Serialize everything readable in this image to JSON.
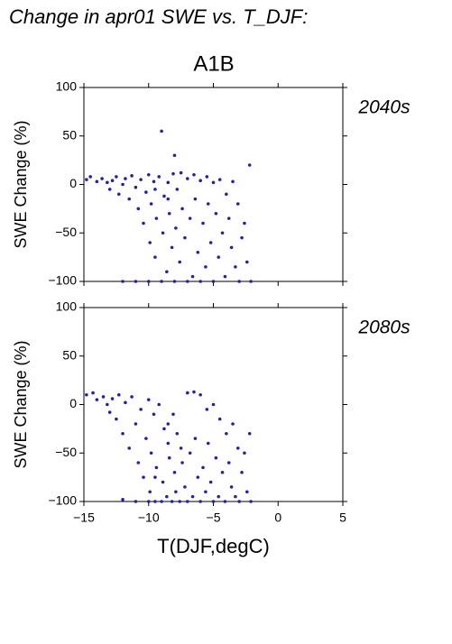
{
  "header": {
    "title": "Change in apr01 SWE vs. T_DJF:",
    "scenario": "A1B"
  },
  "chart_data": [
    {
      "type": "scatter",
      "label": "2040s",
      "ylabel": "SWE Change (%)",
      "color": "#2020b8",
      "xlim": [
        -15,
        5
      ],
      "xticks": [
        -15,
        -10,
        -5,
        0,
        5
      ],
      "ylim": [
        -100,
        100
      ],
      "yticks": [
        {
          "value": -100,
          "label": "−100"
        },
        {
          "value": -50,
          "label": "−50"
        },
        0,
        50,
        100
      ],
      "x": [
        -14.8,
        -14.5,
        -14,
        -13.6,
        -13.2,
        -13,
        -12.8,
        -12.5,
        -12.3,
        -12,
        -11.8,
        -11.5,
        -11.3,
        -11,
        -10.8,
        -10.6,
        -10.4,
        -10.2,
        -10,
        -9.9,
        -9.8,
        -9.6,
        -9.5,
        -9.4,
        -9.2,
        -9,
        -9,
        -8.9,
        -8.8,
        -8.6,
        -8.5,
        -8.4,
        -8.2,
        -8.1,
        -8,
        -8,
        -7.9,
        -7.8,
        -7.6,
        -7.5,
        -7.4,
        -7.2,
        -7,
        -7,
        -6.8,
        -6.6,
        -6.5,
        -6.4,
        -6.2,
        -6,
        -6,
        -5.8,
        -5.6,
        -5.5,
        -5.4,
        -5.2,
        -5,
        -5,
        -4.8,
        -4.6,
        -4.5,
        -4.3,
        -4.1,
        -4,
        -3.8,
        -3.6,
        -3.5,
        -3.3,
        -3.1,
        -3,
        -2.8,
        -2.6,
        -2.4,
        -2.2,
        -2.1,
        -11,
        -12,
        -10,
        -9.5,
        -8.5
      ],
      "values": [
        5,
        8,
        3,
        6,
        2,
        -5,
        4,
        8,
        -10,
        0,
        6,
        -15,
        9,
        -3,
        -25,
        5,
        -40,
        -8,
        10,
        -60,
        -20,
        3,
        -75,
        -35,
        8,
        55,
        -100,
        -50,
        -12,
        -90,
        2,
        -30,
        -65,
        11,
        30,
        -100,
        -45,
        -5,
        -80,
        12,
        -25,
        -55,
        -100,
        6,
        -35,
        -95,
        10,
        -15,
        -70,
        -100,
        4,
        -40,
        -85,
        8,
        -20,
        -60,
        -100,
        2,
        -30,
        -75,
        5,
        -50,
        -95,
        -10,
        -35,
        -65,
        3,
        -85,
        -20,
        -100,
        -55,
        -40,
        -80,
        20,
        -100,
        -100,
        -100,
        -100,
        -5,
        -15
      ]
    },
    {
      "type": "scatter",
      "label": "2080s",
      "ylabel": "SWE Change (%)",
      "xlabel": "T(DJF,degC)",
      "color": "#2020b8",
      "xlim": [
        -15,
        5
      ],
      "xticks": [
        {
          "value": -15,
          "label": "−15"
        },
        {
          "value": -10,
          "label": "−10"
        },
        {
          "value": -5,
          "label": "−5"
        },
        0,
        5
      ],
      "ylim": [
        -100,
        100
      ],
      "yticks": [
        {
          "value": -100,
          "label": "−100"
        },
        {
          "value": -50,
          "label": "−50"
        },
        0,
        50,
        100
      ],
      "x": [
        -14.8,
        -14.3,
        -14,
        -13.5,
        -13.2,
        -13,
        -12.8,
        -12.5,
        -12.3,
        -12,
        -11.8,
        -11.5,
        -11.3,
        -11,
        -10.8,
        -10.6,
        -10.4,
        -10.2,
        -10,
        -9.9,
        -9.8,
        -9.6,
        -9.5,
        -9.4,
        -9.2,
        -9,
        -8.9,
        -8.8,
        -8.6,
        -8.5,
        -8.4,
        -8.2,
        -8.1,
        -8,
        -7.9,
        -7.8,
        -7.6,
        -7.5,
        -7.4,
        -7.2,
        -7,
        -7,
        -6.8,
        -6.6,
        -6.5,
        -6.4,
        -6.2,
        -6,
        -6,
        -5.8,
        -5.6,
        -5.5,
        -5.4,
        -5.2,
        -5,
        -5,
        -4.8,
        -4.6,
        -4.5,
        -4.3,
        -4.1,
        -4,
        -3.8,
        -3.6,
        -3.5,
        -3.3,
        -3.1,
        -3,
        -2.8,
        -2.6,
        -2.4,
        -2.2,
        -2.1,
        -11,
        -12,
        -10,
        -9.5,
        -8.5
      ],
      "values": [
        10,
        12,
        5,
        8,
        0,
        -8,
        6,
        -15,
        10,
        -30,
        2,
        -45,
        8,
        -20,
        -60,
        -5,
        -75,
        -35,
        5,
        -90,
        -50,
        -10,
        -100,
        -65,
        0,
        -100,
        -80,
        -25,
        -95,
        -40,
        -55,
        -100,
        -10,
        -70,
        -90,
        -30,
        -100,
        -45,
        -60,
        -85,
        -100,
        12,
        -50,
        -95,
        13,
        -35,
        -75,
        -100,
        10,
        -65,
        -90,
        -5,
        -40,
        -80,
        -100,
        0,
        -55,
        -95,
        -15,
        -70,
        -100,
        -30,
        -60,
        -85,
        -20,
        -95,
        -45,
        -100,
        -70,
        -50,
        -90,
        -30,
        -100,
        -100,
        -98,
        -100,
        -75,
        -20
      ]
    }
  ]
}
